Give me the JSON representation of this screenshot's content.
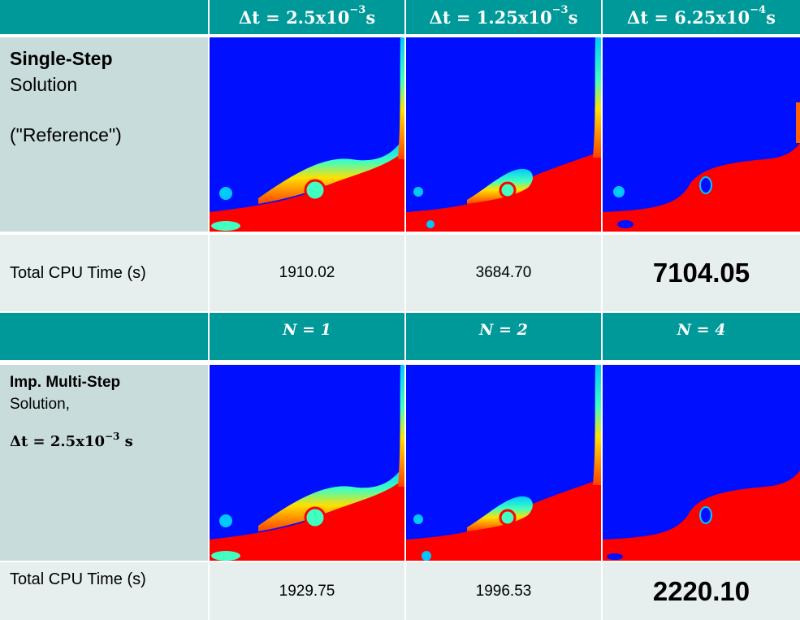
{
  "colors": {
    "teal": "#00999a",
    "side": "#c9dcdc",
    "light": "#e6eeee",
    "blue": "#0010ff",
    "red": "#ff0000"
  },
  "top_headers": [
    {
      "base": "Δt = 2.5x10",
      "exp": "−3",
      "unit": " s"
    },
    {
      "base": "Δt = 1.25x10",
      "exp": "−3",
      "unit": " s"
    },
    {
      "base": "Δt = 6.25x10",
      "exp": "−4",
      "unit": " s"
    }
  ],
  "single_step": {
    "title": "Single-Step",
    "subtitle": "Solution",
    "note": "(\"Reference\")",
    "cpu_label": "Total CPU Time (s)",
    "cpu_times": [
      "1910.02",
      "3684.70",
      "7104.05"
    ]
  },
  "mid_headers": [
    "N = 1",
    "N = 2",
    "N = 4"
  ],
  "multi_step": {
    "title": "Imp. Multi-Step",
    "subtitle": "Solution,",
    "eq_base": "Δt = 2.5x10",
    "eq_exp": "−3",
    "eq_unit": " s",
    "cpu_label": "Total CPU Time (s)",
    "cpu_times": [
      "1929.75",
      "1996.53",
      "2220.10"
    ]
  }
}
